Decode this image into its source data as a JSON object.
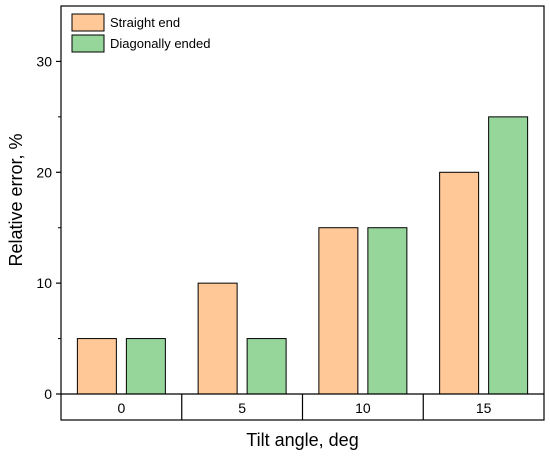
{
  "chart_data": {
    "type": "bar",
    "categories": [
      "0",
      "5",
      "10",
      "15"
    ],
    "series": [
      {
        "name": "Straight end",
        "values": [
          5,
          10,
          15,
          20
        ],
        "color": "#FFC896"
      },
      {
        "name": "Diagonally ended",
        "values": [
          5,
          5,
          15,
          25
        ],
        "color": "#96D69A"
      }
    ],
    "title": "",
    "xlabel": "Tilt angle, deg",
    "ylabel": "Relative error, %",
    "ylim": [
      0,
      35
    ],
    "yticks": [
      0,
      10,
      20,
      30
    ],
    "grid": false,
    "legend_position": "top-left"
  }
}
